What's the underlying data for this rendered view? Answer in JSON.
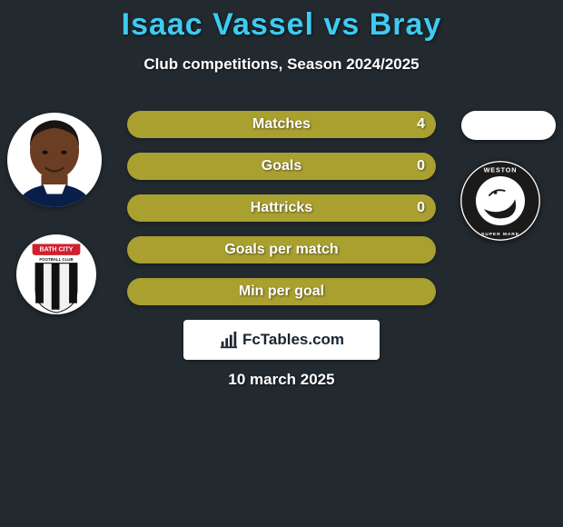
{
  "background_color": "#222a30",
  "title": {
    "text": "Isaac Vassel vs Bray",
    "color": "#3fcaf2",
    "fontsize": 34,
    "fontweight": 800
  },
  "subtitle": {
    "text": "Club competitions, Season 2024/2025",
    "color": "#ffffff",
    "fontsize": 17
  },
  "bars": {
    "bar_color": "#a9a030",
    "label_color": "#ffffff",
    "value_color": "#ffffff",
    "height": 30,
    "radius": 15,
    "items": [
      {
        "label": "Matches",
        "value": "4"
      },
      {
        "label": "Goals",
        "value": "0"
      },
      {
        "label": "Hattricks",
        "value": "0"
      },
      {
        "label": "Goals per match",
        "value": ""
      },
      {
        "label": "Min per goal",
        "value": ""
      }
    ]
  },
  "avatars": {
    "left_player": {
      "bg": "#ffffff",
      "skin": "#6b3d22",
      "hair": "#191414",
      "shirt": "#0a1e4a"
    },
    "left_club": {
      "bg": "#ffffff",
      "banner_red": "#d01f2e",
      "text_top": "BATH CITY",
      "text_bottom": "FOOTBALL CLUB",
      "stripe_black": "#111111",
      "stripe_white": "#f2f2f2"
    },
    "right_oval": {
      "bg": "#ffffff"
    },
    "right_club": {
      "bg": "#1a1a1a",
      "ring": "#ffffff",
      "inner_bg": "#ffffff",
      "text_top": "WESTON",
      "text_bottom": "SUPER MARE"
    }
  },
  "watermark": {
    "bg": "#ffffff",
    "text": "FcTables.com",
    "text_color": "#1a2530",
    "icon_color": "#1a2530"
  },
  "date": {
    "text": "10 march 2025",
    "color": "#ffffff"
  }
}
